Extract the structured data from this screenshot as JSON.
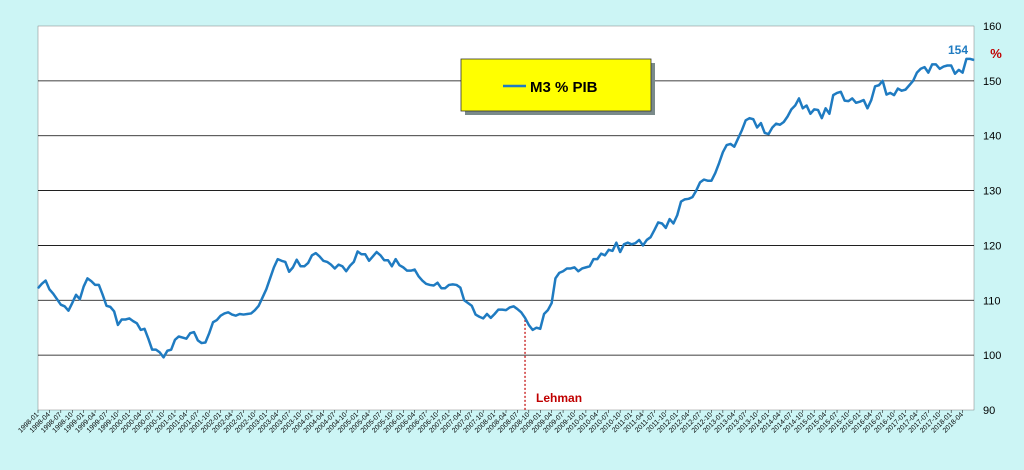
{
  "colors": {
    "background": "#ccf5f5",
    "plot_background": "#ffffff",
    "series": "#1f7bc1",
    "legend_fill": "#ffff00",
    "annotation": "#c00000",
    "gridline": "#000000"
  },
  "chart_data": {
    "type": "line",
    "title": "",
    "xlabel": "",
    "ylabel": "",
    "ylim": [
      90,
      160
    ],
    "yticks": [
      90,
      100,
      110,
      120,
      130,
      140,
      150,
      160
    ],
    "yaxis_position": "right",
    "ylabel_unit": "%",
    "grid": true,
    "legend_position": "top-center",
    "legend_label": "M3 % PIB",
    "end_label": "154",
    "annotation": {
      "label": "Lehman",
      "x": "2008-09"
    },
    "xticks": [
      "1998-01",
      "1998-04",
      "1998-07",
      "1998-10",
      "1999-01",
      "1999-04",
      "1999-07",
      "1999-10",
      "2000-01",
      "2000-04",
      "2000-07",
      "2000-10",
      "2001-01",
      "2001-04",
      "2001-07",
      "2001-10",
      "2002-01",
      "2002-04",
      "2002-07",
      "2002-10",
      "2003-01",
      "2003-04",
      "2003-07",
      "2003-10",
      "2004-01",
      "2004-04",
      "2004-07",
      "2004-10",
      "2005-01",
      "2005-04",
      "2005-07",
      "2005-10",
      "2006-01",
      "2006-04",
      "2006-07",
      "2006-10",
      "2007-01",
      "2007-04",
      "2007-07",
      "2007-10",
      "2008-01",
      "2008-04",
      "2008-07",
      "2008-10",
      "2009-01",
      "2009-04",
      "2009-07",
      "2009-10",
      "2010-01",
      "2010-04",
      "2010-07",
      "2010-10",
      "2011-01",
      "2011-04",
      "2011-07",
      "2011-10",
      "2012-01",
      "2012-04",
      "2012-07",
      "2012-10",
      "2013-01",
      "2013-04",
      "2013-07",
      "2013-10",
      "2014-01",
      "2014-04",
      "2014-07",
      "2014-10",
      "2015-01",
      "2015-04",
      "2015-07",
      "2015-10",
      "2016-01",
      "2016-04",
      "2016-07",
      "2016-10",
      "2017-01",
      "2017-04",
      "2017-07",
      "2017-10",
      "2018-01",
      "2018-04"
    ],
    "series": [
      {
        "name": "M3 % PIB",
        "x_start": "1998-01",
        "frequency": "monthly",
        "values": [
          112.2,
          113.0,
          113.6,
          112.0,
          111.2,
          110.2,
          109.2,
          108.9,
          108.1,
          109.5,
          111.0,
          110.2,
          112.5,
          114.0,
          113.5,
          112.8,
          112.8,
          111.0,
          109.0,
          108.8,
          108.0,
          105.5,
          106.5,
          106.5,
          106.7,
          106.2,
          105.8,
          104.6,
          104.8,
          103.0,
          101.0,
          101.0,
          100.5,
          99.6,
          100.8,
          101.0,
          102.8,
          103.4,
          103.2,
          103.0,
          104.0,
          104.2,
          102.7,
          102.2,
          102.3,
          104.0,
          106.0,
          106.4,
          107.2,
          107.6,
          107.8,
          107.4,
          107.2,
          107.5,
          107.4,
          107.5,
          107.6,
          108.2,
          109.0,
          110.5,
          112.0,
          114.0,
          116.0,
          117.5,
          117.2,
          117.0,
          115.2,
          116.0,
          117.4,
          116.2,
          116.2,
          116.8,
          118.2,
          118.6,
          118.0,
          117.2,
          117.0,
          116.5,
          115.8,
          116.5,
          116.2,
          115.3,
          116.3,
          117.0,
          118.9,
          118.4,
          118.4,
          117.2,
          118.0,
          118.8,
          118.2,
          117.3,
          117.3,
          116.2,
          117.5,
          116.4,
          116.0,
          115.4,
          115.4,
          115.6,
          114.4,
          113.6,
          113.0,
          112.8,
          112.7,
          113.2,
          112.2,
          112.2,
          112.8,
          112.9,
          112.8,
          112.3,
          110.0,
          109.5,
          109.0,
          107.4,
          107.0,
          106.7,
          107.5,
          106.8,
          107.5,
          108.3,
          108.3,
          108.2,
          108.7,
          108.9,
          108.4,
          107.8,
          106.8,
          105.5,
          104.6,
          105.0,
          104.8,
          107.5,
          108.2,
          109.5,
          114.0,
          115.0,
          115.3,
          115.8,
          115.8,
          116.0,
          115.3,
          115.8,
          116.0,
          116.2,
          117.5,
          117.5,
          118.5,
          118.2,
          119.2,
          119.0,
          120.5,
          118.8,
          120.2,
          120.5,
          120.2,
          120.4,
          121.0,
          120.0,
          121.0,
          121.5,
          122.8,
          124.2,
          124.0,
          123.2,
          124.8,
          124.0,
          125.5,
          128.0,
          128.4,
          128.5,
          128.8,
          130.0,
          131.5,
          132.0,
          131.8,
          131.8,
          133.2,
          135.0,
          137.0,
          138.3,
          138.5,
          138.0,
          139.5,
          141.0,
          142.8,
          143.2,
          143.0,
          141.5,
          142.3,
          140.5,
          140.3,
          141.5,
          142.2,
          142.0,
          142.5,
          143.5,
          144.8,
          145.5,
          146.8,
          145.0,
          145.5,
          144.0,
          144.8,
          144.7,
          143.2,
          145.0,
          144.0,
          147.4,
          147.8,
          148.0,
          146.4,
          146.3,
          146.8,
          146.0,
          146.2,
          146.5,
          145.0,
          146.5,
          149.0,
          149.2,
          150.0,
          147.5,
          147.8,
          147.4,
          148.6,
          148.2,
          148.4,
          149.2,
          150.0,
          151.5,
          152.2,
          152.5,
          151.5,
          153.0,
          153.0,
          152.2,
          152.6,
          152.8,
          152.8,
          151.3,
          152.0,
          151.5,
          154.0,
          154.0,
          153.8
        ]
      }
    ]
  }
}
